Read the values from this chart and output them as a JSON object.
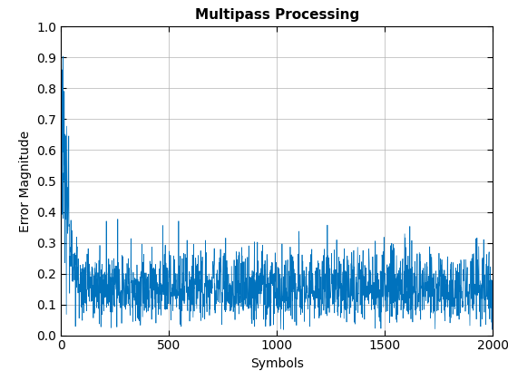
{
  "title": "Multipass Processing",
  "xlabel": "Symbols",
  "ylabel": "Error Magnitude",
  "xlim": [
    0,
    2000
  ],
  "ylim": [
    0,
    1
  ],
  "n_symbols": 2000,
  "line_color": "#0072BD",
  "line_width": 0.5,
  "background_color": "#ffffff",
  "grid_color": "#b0b0b0",
  "xticks": [
    0,
    500,
    1000,
    1500,
    2000
  ],
  "yticks": [
    0,
    0.1,
    0.2,
    0.3,
    0.4,
    0.5,
    0.6,
    0.7,
    0.8,
    0.9,
    1.0
  ],
  "seed": 42,
  "decay_rate": 0.04,
  "noise_stable_mean": 0.1,
  "noise_stable_std": 0.07,
  "title_fontsize": 11,
  "label_fontsize": 10,
  "tick_fontsize": 10
}
